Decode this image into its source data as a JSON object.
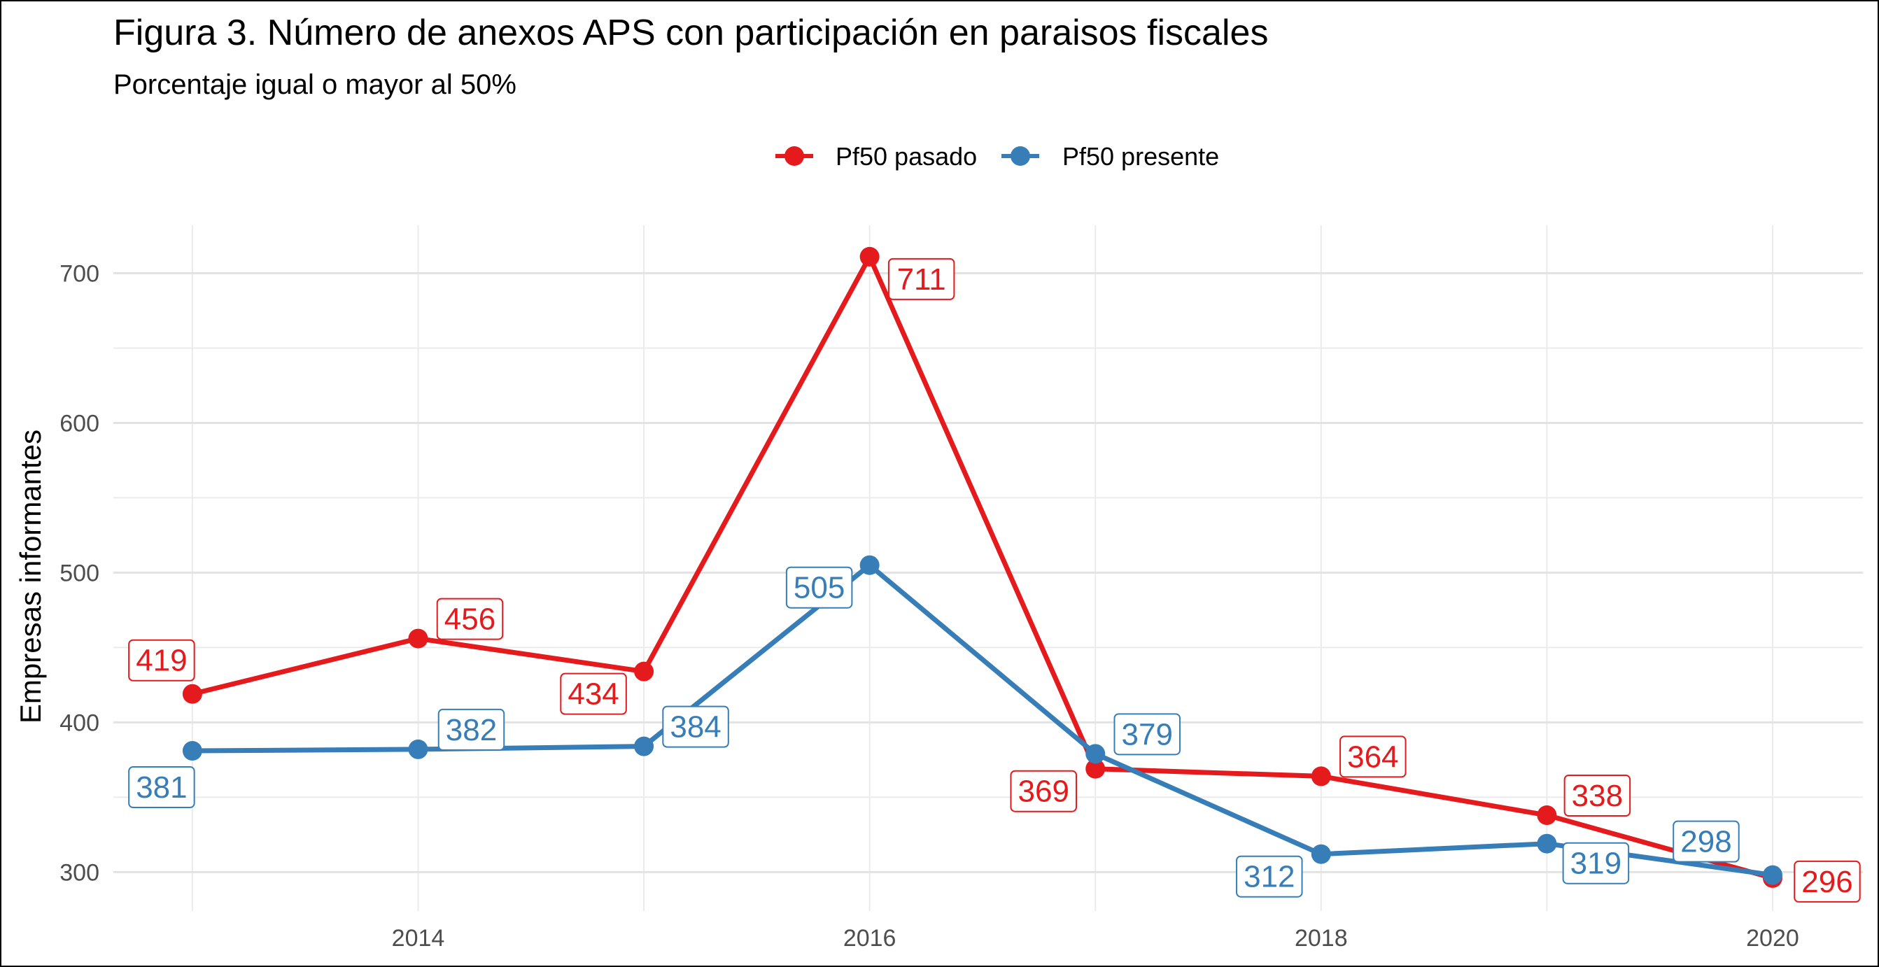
{
  "chart_data": {
    "type": "line",
    "title": "Figura 3. Número de anexos APS con participación en paraisos fiscales",
    "subtitle": "Porcentaje igual o mayor al 50%",
    "xlabel": "",
    "ylabel": "Empresas informantes",
    "x": [
      2013,
      2014,
      2015,
      2016,
      2017,
      2018,
      2019,
      2020
    ],
    "x_ticks": [
      "2014",
      "2016",
      "2018",
      "2020"
    ],
    "y_ticks": [
      "300",
      "400",
      "500",
      "600",
      "700"
    ],
    "xlim": [
      2012.65,
      2020.4
    ],
    "ylim": [
      274,
      732
    ],
    "grid": true,
    "legend_position": "top",
    "series": [
      {
        "name": "Pf50 pasado",
        "color": "#E41A1C",
        "values": [
          419,
          456,
          434,
          711,
          369,
          364,
          338,
          296
        ],
        "labels": [
          "419",
          "456",
          "434",
          "711",
          "369",
          "364",
          "338",
          "296"
        ]
      },
      {
        "name": "Pf50 presente",
        "color": "#377EB8",
        "values": [
          381,
          382,
          384,
          505,
          379,
          312,
          319,
          298
        ],
        "labels": [
          "381",
          "382",
          "384",
          "505",
          "379",
          "312",
          "319",
          "298"
        ]
      }
    ]
  }
}
